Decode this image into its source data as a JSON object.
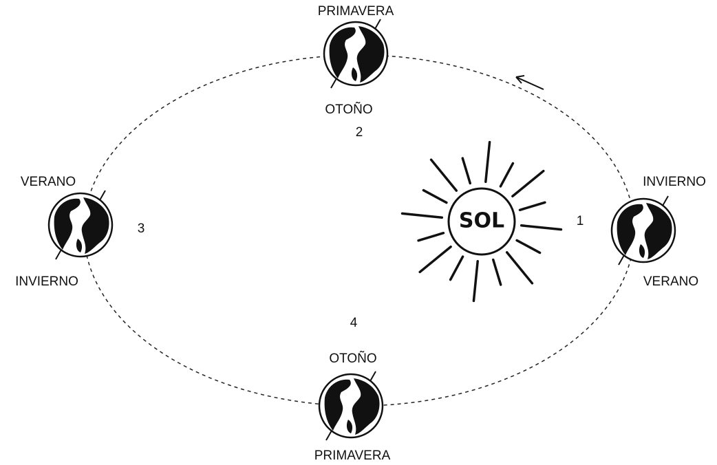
{
  "sun": {
    "label": "SOL"
  },
  "positions": [
    {
      "number": "1",
      "top_label": "INVIERNO",
      "bottom_label": "VERANO"
    },
    {
      "number": "2",
      "top_label": "PRIMAVERA",
      "bottom_label": "OTOÑO"
    },
    {
      "number": "3",
      "top_label": "VERANO",
      "bottom_label": "INVIERNO"
    },
    {
      "number": "4",
      "top_label": "OTOÑO",
      "bottom_label": "PRIMAVERA"
    }
  ]
}
